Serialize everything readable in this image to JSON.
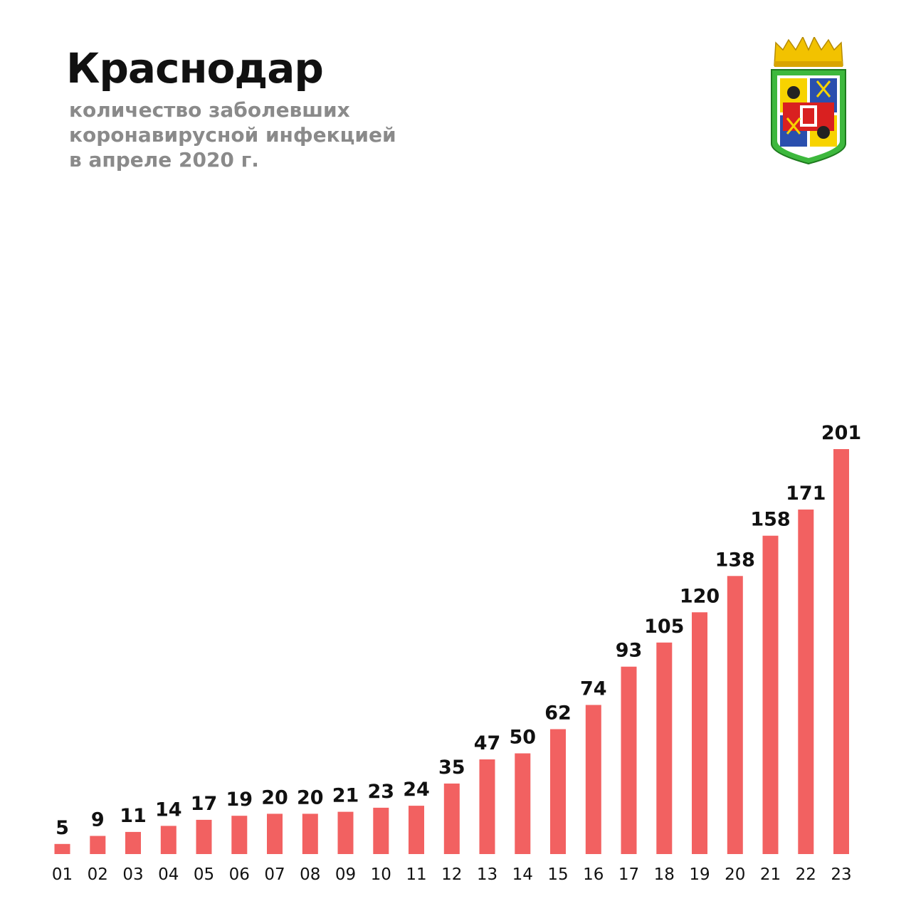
{
  "header": {
    "title": "Краснодар",
    "subtitle": "количество заболевших\nкоронавирусной инфекцией\nв апреле 2020 г."
  },
  "emblem": {
    "icon": "city-coat-of-arms-icon"
  },
  "colors": {
    "bar": "#f26161",
    "title": "#111111",
    "subtitle": "#8a8a8a"
  },
  "chart_data": {
    "type": "bar",
    "title": "Краснодар",
    "subtitle": "количество заболевших коронавирусной инфекцией в апреле 2020 г.",
    "xlabel": "",
    "ylabel": "",
    "categories": [
      "01",
      "02",
      "03",
      "04",
      "05",
      "06",
      "07",
      "08",
      "09",
      "10",
      "11",
      "12",
      "13",
      "14",
      "15",
      "16",
      "17",
      "18",
      "19",
      "20",
      "21",
      "22",
      "23"
    ],
    "values": [
      5,
      9,
      11,
      14,
      17,
      19,
      20,
      20,
      21,
      23,
      24,
      35,
      47,
      50,
      62,
      74,
      93,
      105,
      120,
      138,
      158,
      171,
      201
    ],
    "ylim": [
      0,
      201
    ],
    "grid": false,
    "legend": "none",
    "data_labels": true
  }
}
